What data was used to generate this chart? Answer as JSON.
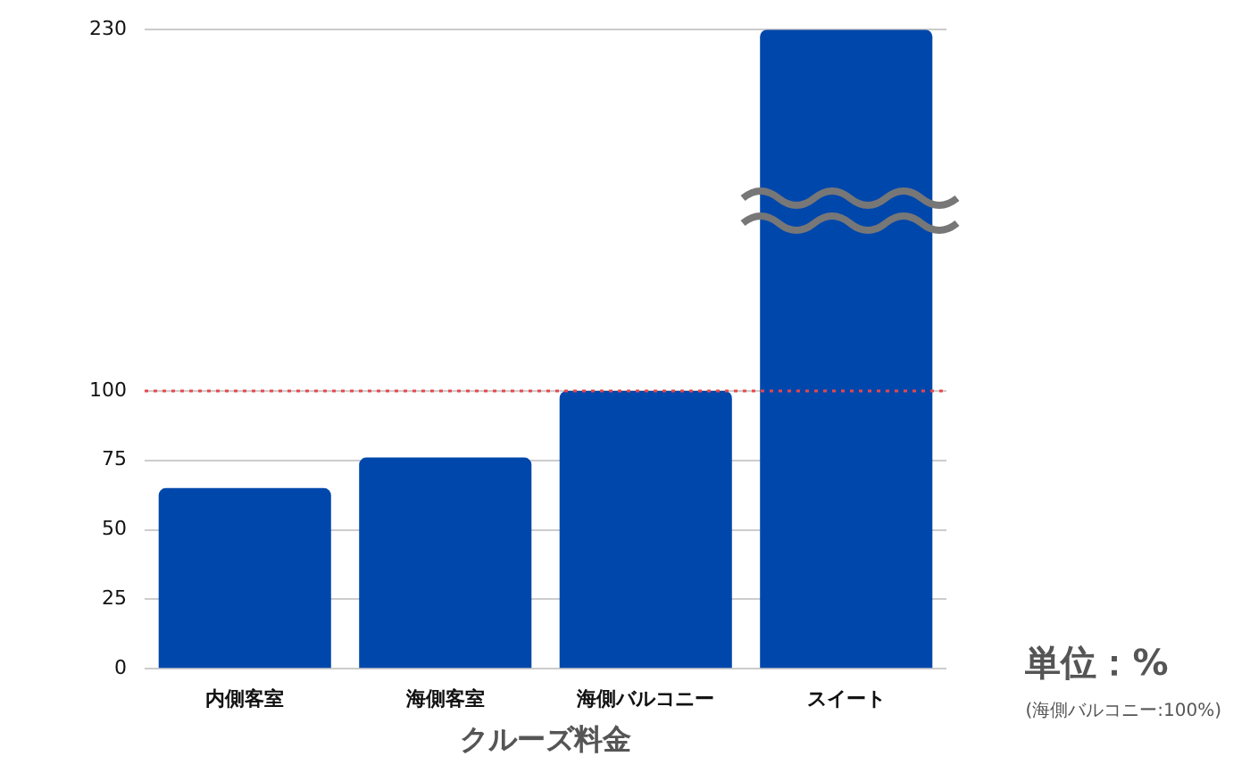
{
  "chart_data": {
    "type": "bar",
    "xlabel": "クルーズ料金",
    "categories": [
      "内側客室",
      "海側客室",
      "海側バルコニー",
      "スイート"
    ],
    "values": [
      65,
      76,
      100,
      230
    ],
    "color": "#0047ab",
    "ylim": [
      0,
      230
    ],
    "yticks": [
      0,
      25,
      50,
      75,
      100,
      230
    ],
    "grid": "y",
    "legend": false,
    "ref_lines": [
      {
        "axis": "y",
        "value": 100,
        "color": "#e8474c",
        "line_style": "dotted"
      }
    ],
    "annotations": [
      "単位：%",
      "(海側バルコニー:100%)"
    ]
  }
}
